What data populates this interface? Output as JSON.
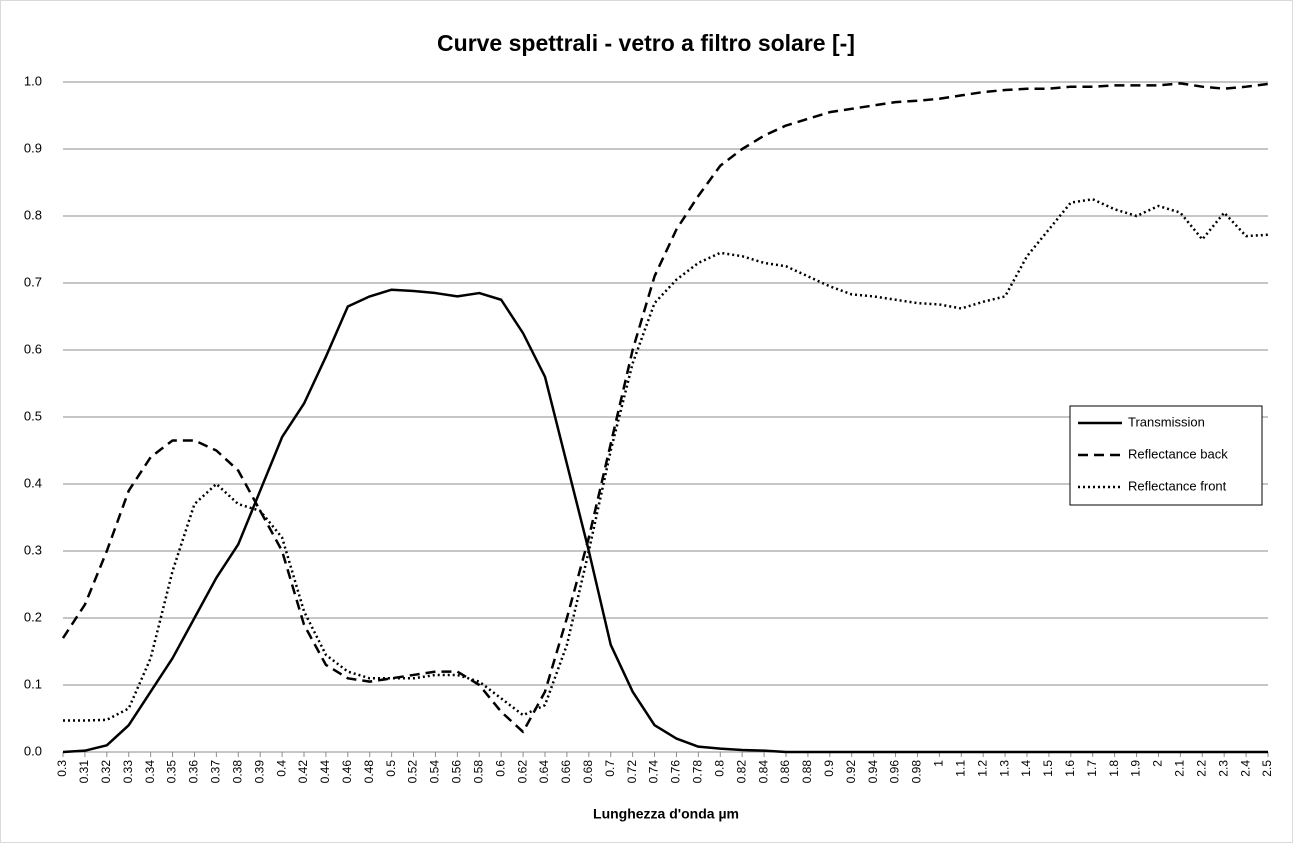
{
  "chart_data": {
    "type": "line",
    "title": "Curve spettrali - vetro a filtro solare [-]",
    "x_label": "Lunghezza d'onda µm",
    "categories": [
      "0.3",
      "0.31",
      "0.32",
      "0.33",
      "0.34",
      "0.35",
      "0.36",
      "0.37",
      "0.38",
      "0.39",
      "0.4",
      "0.42",
      "0.44",
      "0.46",
      "0.48",
      "0.5",
      "0.52",
      "0.54",
      "0.56",
      "0.58",
      "0.6",
      "0.62",
      "0.64",
      "0.66",
      "0.68",
      "0.7",
      "0.72",
      "0.74",
      "0.76",
      "0.78",
      "0.8",
      "0.82",
      "0.84",
      "0.86",
      "0.88",
      "0.9",
      "0.92",
      "0.94",
      "0.96",
      "0.98",
      "1",
      "1.1",
      "1.2",
      "1.3",
      "1.4",
      "1.5",
      "1.6",
      "1.7",
      "1.8",
      "1.9",
      "2",
      "2.1",
      "2.2",
      "2.3",
      "2.4",
      "2.5"
    ],
    "series": [
      {
        "name": "Transmission",
        "color": "#000000",
        "dash": "none",
        "values": [
          0,
          0.002,
          0.01,
          0.04,
          0.09,
          0.14,
          0.2,
          0.26,
          0.31,
          0.39,
          0.47,
          0.52,
          0.59,
          0.665,
          0.68,
          0.69,
          0.688,
          0.685,
          0.68,
          0.685,
          0.675,
          0.625,
          0.56,
          0.43,
          0.3,
          0.16,
          0.09,
          0.04,
          0.02,
          0.008,
          0.005,
          0.003,
          0.002,
          0,
          0,
          0,
          0,
          0,
          0,
          0,
          0,
          0,
          0,
          0,
          0,
          0,
          0,
          0,
          0,
          0,
          0,
          0,
          0,
          0,
          0,
          0
        ]
      },
      {
        "name": "Reflectance back",
        "color": "#000000",
        "dash": "10,6",
        "values": [
          0.17,
          0.22,
          0.3,
          0.39,
          0.44,
          0.465,
          0.465,
          0.45,
          0.42,
          0.36,
          0.3,
          0.19,
          0.13,
          0.11,
          0.105,
          0.11,
          0.115,
          0.12,
          0.12,
          0.1,
          0.06,
          0.03,
          0.09,
          0.2,
          0.32,
          0.46,
          0.6,
          0.71,
          0.78,
          0.83,
          0.875,
          0.9,
          0.92,
          0.935,
          0.945,
          0.955,
          0.96,
          0.965,
          0.97,
          0.972,
          0.975,
          0.98,
          0.985,
          0.988,
          0.99,
          0.99,
          0.993,
          0.993,
          0.995,
          0.995,
          0.995,
          0.998,
          0.993,
          0.99,
          0.993,
          0.997
        ]
      },
      {
        "name": "Reflectance front",
        "color": "#000000",
        "dash": "2,3",
        "values": [
          0.047,
          0.047,
          0.048,
          0.065,
          0.14,
          0.27,
          0.37,
          0.4,
          0.37,
          0.36,
          0.32,
          0.21,
          0.145,
          0.12,
          0.11,
          0.11,
          0.11,
          0.115,
          0.115,
          0.105,
          0.08,
          0.055,
          0.07,
          0.16,
          0.3,
          0.45,
          0.58,
          0.67,
          0.705,
          0.73,
          0.745,
          0.74,
          0.73,
          0.725,
          0.71,
          0.695,
          0.683,
          0.68,
          0.675,
          0.67,
          0.668,
          0.662,
          0.672,
          0.68,
          0.74,
          0.78,
          0.82,
          0.825,
          0.81,
          0.8,
          0.815,
          0.805,
          0.765,
          0.805,
          0.77,
          0.772
        ]
      }
    ],
    "ylim": [
      0,
      1
    ],
    "yticks": [
      {
        "value": 0,
        "label": "0.0"
      },
      {
        "value": 0.1,
        "label": "0.1"
      },
      {
        "value": 0.2,
        "label": "0.2"
      },
      {
        "value": 0.3,
        "label": "0.3"
      },
      {
        "value": 0.4,
        "label": "0.4"
      },
      {
        "value": 0.5,
        "label": "0.5"
      },
      {
        "value": 0.6,
        "label": "0.6"
      },
      {
        "value": 0.7,
        "label": "0.7"
      },
      {
        "value": 0.8,
        "label": "0.8"
      },
      {
        "value": 0.9,
        "label": "0.9"
      },
      {
        "value": 1,
        "label": "1.0"
      }
    ],
    "grid": true,
    "legend": "right"
  }
}
